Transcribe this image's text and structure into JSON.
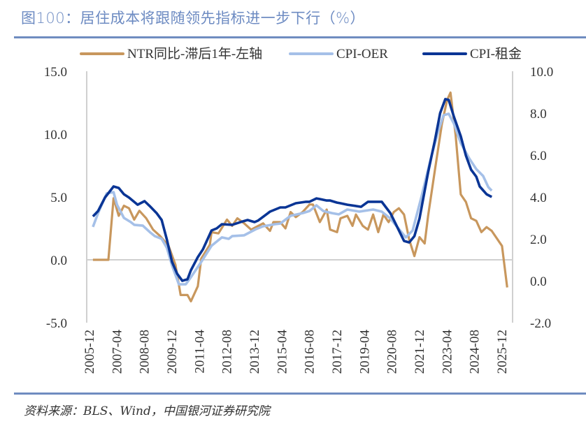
{
  "title": "图100：居住成本将跟随领先指标进一步下行（%）",
  "source": "资料来源：BLS、Wind，中国银河证券研究院",
  "chart_data": {
    "type": "line",
    "title": "图100：居住成本将跟随领先指标进一步下行（%）",
    "legend_position": "top",
    "grid": false,
    "y_left": {
      "range": [
        -5,
        15
      ],
      "ticks": [
        "15.0",
        "10.0",
        "5.0",
        "0.0",
        "-5.0"
      ]
    },
    "y_right": {
      "range": [
        -2,
        10
      ],
      "ticks": [
        "10.0",
        "8.0",
        "6.0",
        "4.0",
        "2.0",
        "0.0",
        "-2.0"
      ]
    },
    "x_ticks": [
      "2005-12",
      "2007-04",
      "2008-08",
      "2009-12",
      "2011-04",
      "2012-08",
      "2013-12",
      "2015-04",
      "2016-08",
      "2017-12",
      "2019-04",
      "2020-08",
      "2021-12",
      "2023-04",
      "2024-08",
      "2025-12"
    ],
    "series": [
      {
        "name": "NTR同比-滞后1年-左轴",
        "axis": "left",
        "color": "#c8975d",
        "points": [
          [
            "2006-02",
            0.0
          ],
          [
            "2006-11",
            0.0
          ],
          [
            "2007-02",
            4.9
          ],
          [
            "2007-05",
            3.5
          ],
          [
            "2007-08",
            4.3
          ],
          [
            "2007-11",
            4.1
          ],
          [
            "2008-02",
            3.2
          ],
          [
            "2008-05",
            3.9
          ],
          [
            "2008-09",
            3.3
          ],
          [
            "2009-01",
            2.4
          ],
          [
            "2009-05",
            1.9
          ],
          [
            "2009-10",
            1.1
          ],
          [
            "2010-02",
            -0.4
          ],
          [
            "2010-05",
            -2.8
          ],
          [
            "2010-09",
            -2.8
          ],
          [
            "2010-11",
            -3.3
          ],
          [
            "2011-03",
            -2.1
          ],
          [
            "2011-05",
            0.1
          ],
          [
            "2011-10",
            1.2
          ],
          [
            "2011-11",
            2.2
          ],
          [
            "2012-03",
            2.1
          ],
          [
            "2012-08",
            3.2
          ],
          [
            "2012-11",
            2.7
          ],
          [
            "2013-02",
            3.3
          ],
          [
            "2013-06",
            2.9
          ],
          [
            "2013-10",
            2.4
          ],
          [
            "2014-05",
            2.9
          ],
          [
            "2014-09",
            2.3
          ],
          [
            "2014-11",
            3.0
          ],
          [
            "2015-03",
            3.0
          ],
          [
            "2015-06",
            2.5
          ],
          [
            "2015-09",
            3.8
          ],
          [
            "2015-12",
            3.4
          ],
          [
            "2016-04",
            3.8
          ],
          [
            "2016-08",
            4.4
          ],
          [
            "2016-10",
            4.4
          ],
          [
            "2017-02",
            3.0
          ],
          [
            "2017-06",
            4.0
          ],
          [
            "2017-08",
            2.4
          ],
          [
            "2017-12",
            2.2
          ],
          [
            "2018-02",
            3.3
          ],
          [
            "2018-06",
            3.5
          ],
          [
            "2018-09",
            2.7
          ],
          [
            "2018-11",
            3.6
          ],
          [
            "2019-03",
            2.7
          ],
          [
            "2019-06",
            2.4
          ],
          [
            "2019-09",
            3.6
          ],
          [
            "2019-12",
            2.2
          ],
          [
            "2020-03",
            3.6
          ],
          [
            "2020-06",
            3.0
          ],
          [
            "2020-09",
            3.8
          ],
          [
            "2020-12",
            4.1
          ],
          [
            "2021-03",
            3.6
          ],
          [
            "2021-06",
            1.6
          ],
          [
            "2021-09",
            0.3
          ],
          [
            "2021-12",
            1.8
          ],
          [
            "2022-03",
            1.3
          ],
          [
            "2022-05",
            3.5
          ],
          [
            "2022-09",
            7.2
          ],
          [
            "2023-01",
            10.8
          ],
          [
            "2023-04",
            12.7
          ],
          [
            "2023-06",
            13.3
          ],
          [
            "2023-09",
            9.9
          ],
          [
            "2023-12",
            5.2
          ],
          [
            "2024-03",
            4.6
          ],
          [
            "2024-06",
            3.3
          ],
          [
            "2024-09",
            3.1
          ],
          [
            "2024-12",
            2.2
          ],
          [
            "2025-03",
            2.6
          ],
          [
            "2025-06",
            2.3
          ],
          [
            "2025-12",
            1.1
          ],
          [
            "2026-03",
            -2.2
          ]
        ]
      },
      {
        "name": "CPI-OER",
        "axis": "right",
        "color": "#a5c0e8",
        "points": [
          [
            "2006-02",
            2.57
          ],
          [
            "2006-05",
            3.23
          ],
          [
            "2006-10",
            4.17
          ],
          [
            "2007-02",
            4.23
          ],
          [
            "2007-04",
            3.63
          ],
          [
            "2007-08",
            3.0
          ],
          [
            "2007-12",
            2.8
          ],
          [
            "2008-02",
            2.67
          ],
          [
            "2008-07",
            2.63
          ],
          [
            "2008-11",
            2.33
          ],
          [
            "2009-02",
            2.13
          ],
          [
            "2009-06",
            2.0
          ],
          [
            "2009-09",
            1.57
          ],
          [
            "2009-12",
            0.73
          ],
          [
            "2010-04",
            -0.17
          ],
          [
            "2010-08",
            -0.17
          ],
          [
            "2010-11",
            0.17
          ],
          [
            "2011-05",
            0.9
          ],
          [
            "2011-11",
            1.67
          ],
          [
            "2012-05",
            2.07
          ],
          [
            "2012-09",
            2.0
          ],
          [
            "2012-11",
            2.13
          ],
          [
            "2013-06",
            2.17
          ],
          [
            "2014-01",
            2.47
          ],
          [
            "2014-05",
            2.6
          ],
          [
            "2014-12",
            2.7
          ],
          [
            "2015-03",
            2.73
          ],
          [
            "2015-09",
            3.1
          ],
          [
            "2016-04",
            3.23
          ],
          [
            "2016-08",
            3.33
          ],
          [
            "2016-12",
            3.6
          ],
          [
            "2017-04",
            3.33
          ],
          [
            "2017-09",
            3.23
          ],
          [
            "2018-01",
            3.17
          ],
          [
            "2018-06",
            3.4
          ],
          [
            "2019-01",
            3.3
          ],
          [
            "2019-09",
            3.4
          ],
          [
            "2020-02",
            3.3
          ],
          [
            "2020-07",
            2.97
          ],
          [
            "2020-12",
            2.47
          ],
          [
            "2021-04",
            2.07
          ],
          [
            "2021-08",
            2.4
          ],
          [
            "2022-01",
            3.97
          ],
          [
            "2022-07",
            5.97
          ],
          [
            "2022-11",
            7.17
          ],
          [
            "2023-02",
            7.9
          ],
          [
            "2023-05",
            7.97
          ],
          [
            "2023-08",
            7.5
          ],
          [
            "2023-12",
            6.57
          ],
          [
            "2024-05",
            5.83
          ],
          [
            "2024-09",
            5.33
          ],
          [
            "2025-01",
            5.0
          ],
          [
            "2025-04",
            4.47
          ],
          [
            "2025-06",
            4.3
          ]
        ]
      },
      {
        "name": "CPI-租金",
        "axis": "right",
        "color": "#0a3595",
        "points": [
          [
            "2006-02",
            3.07
          ],
          [
            "2006-05",
            3.33
          ],
          [
            "2006-09",
            3.97
          ],
          [
            "2007-02",
            4.5
          ],
          [
            "2007-05",
            4.43
          ],
          [
            "2007-08",
            4.13
          ],
          [
            "2007-11",
            3.97
          ],
          [
            "2008-04",
            3.63
          ],
          [
            "2008-08",
            3.8
          ],
          [
            "2008-11",
            3.57
          ],
          [
            "2009-03",
            3.23
          ],
          [
            "2009-06",
            2.9
          ],
          [
            "2009-09",
            1.97
          ],
          [
            "2009-12",
            0.9
          ],
          [
            "2010-03",
            0.33
          ],
          [
            "2010-06",
            0.0
          ],
          [
            "2010-09",
            0.07
          ],
          [
            "2010-11",
            0.5
          ],
          [
            "2011-03",
            1.13
          ],
          [
            "2011-06",
            1.5
          ],
          [
            "2011-11",
            2.4
          ],
          [
            "2012-02",
            2.5
          ],
          [
            "2012-05",
            2.7
          ],
          [
            "2012-11",
            2.67
          ],
          [
            "2013-05",
            2.83
          ],
          [
            "2013-08",
            2.9
          ],
          [
            "2013-12",
            2.8
          ],
          [
            "2014-02",
            2.87
          ],
          [
            "2014-09",
            3.3
          ],
          [
            "2015-03",
            3.5
          ],
          [
            "2015-06",
            3.5
          ],
          [
            "2015-12",
            3.7
          ],
          [
            "2016-06",
            3.77
          ],
          [
            "2016-08",
            3.77
          ],
          [
            "2016-12",
            3.93
          ],
          [
            "2017-02",
            3.9
          ],
          [
            "2017-06",
            3.83
          ],
          [
            "2017-08",
            3.83
          ],
          [
            "2017-12",
            3.73
          ],
          [
            "2018-02",
            3.7
          ],
          [
            "2018-06",
            3.63
          ],
          [
            "2019-02",
            3.53
          ],
          [
            "2019-06",
            3.77
          ],
          [
            "2020-02",
            3.77
          ],
          [
            "2020-07",
            3.23
          ],
          [
            "2020-11",
            2.57
          ],
          [
            "2021-03",
            1.9
          ],
          [
            "2021-06",
            1.83
          ],
          [
            "2021-09",
            2.13
          ],
          [
            "2021-12",
            2.97
          ],
          [
            "2022-05",
            5.17
          ],
          [
            "2022-09",
            6.73
          ],
          [
            "2022-12",
            8.0
          ],
          [
            "2023-03",
            8.67
          ],
          [
            "2023-05",
            8.63
          ],
          [
            "2023-08",
            7.83
          ],
          [
            "2023-12",
            6.9
          ],
          [
            "2024-03",
            5.97
          ],
          [
            "2024-06",
            5.3
          ],
          [
            "2024-09",
            4.97
          ],
          [
            "2024-11",
            4.5
          ],
          [
            "2025-03",
            4.13
          ],
          [
            "2025-06",
            4.0
          ]
        ]
      }
    ]
  }
}
